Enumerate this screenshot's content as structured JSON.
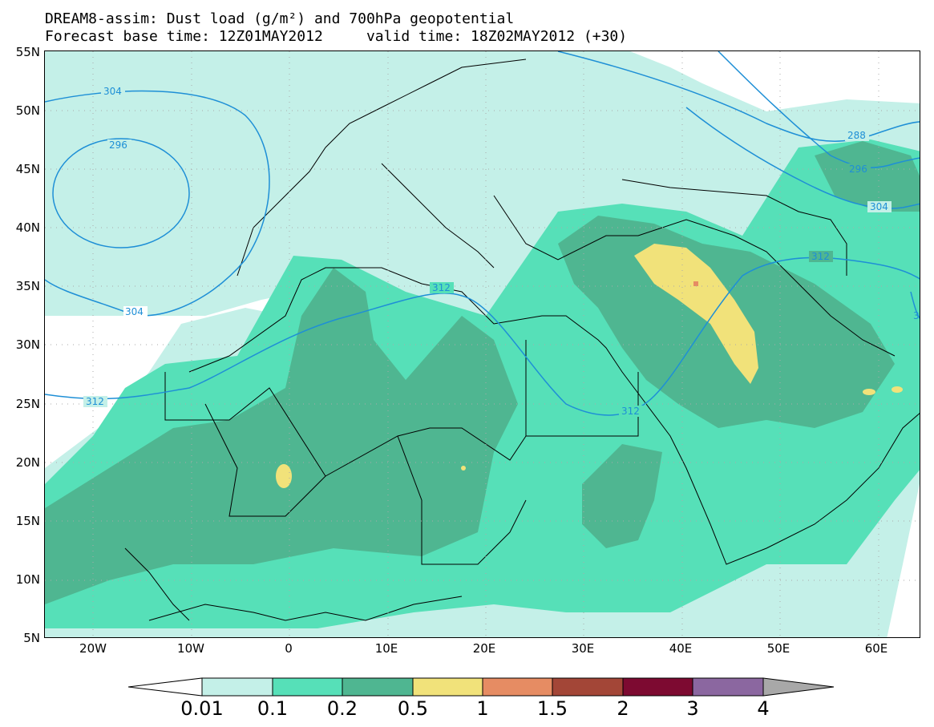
{
  "title": {
    "line1": "DREAM8-assim: Dust load (g/m²) and 700hPa geopotential",
    "line2": "Forecast base time: 12Z01MAY2012     valid time: 18Z02MAY2012 (+30)"
  },
  "axes": {
    "lat_labels": [
      "55N",
      "50N",
      "45N",
      "40N",
      "35N",
      "30N",
      "25N",
      "20N",
      "15N",
      "10N",
      "5N"
    ],
    "lon_labels": [
      "20W",
      "10W",
      "0",
      "10E",
      "20E",
      "30E",
      "40E",
      "50E",
      "60E"
    ]
  },
  "colorbar": {
    "levels": [
      "0.01",
      "0.1",
      "0.2",
      "0.5",
      "1",
      "1.5",
      "2",
      "3",
      "4"
    ],
    "colors": [
      "#c4f0e8",
      "#56e0b8",
      "#4fb691",
      "#f1e27a",
      "#e68c63",
      "#a34637",
      "#7d0a31",
      "#8b67a0",
      "#a8a8a8"
    ]
  },
  "contours": {
    "labels": [
      "304",
      "296",
      "304",
      "312",
      "312",
      "312",
      "288",
      "296",
      "304",
      "312",
      "3"
    ],
    "line_color": "#1e8fd6"
  },
  "dust_colors": {
    "light": "#c4f0e8",
    "medium": "#56e0b8",
    "dark": "#4fb691",
    "yellow": "#f1e27a",
    "orange": "#e68c63"
  }
}
